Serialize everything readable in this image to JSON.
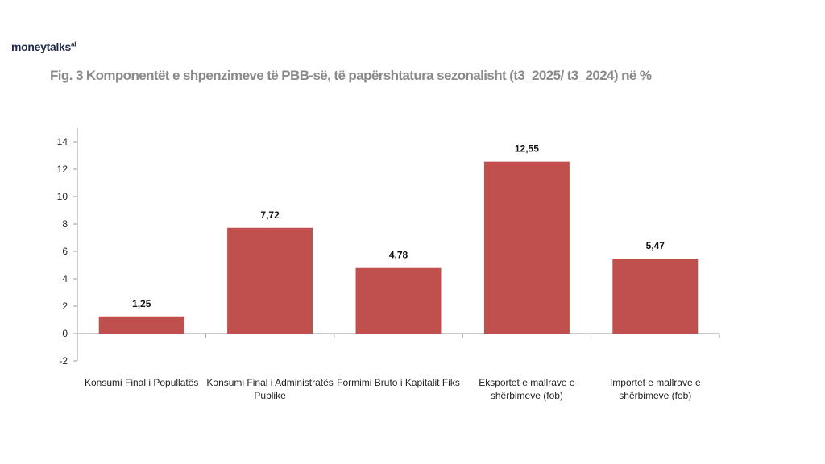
{
  "brand": {
    "logo_text": "moneytalks",
    "logo_sup": "al"
  },
  "chart_data": {
    "type": "bar",
    "title": "Fig. 3 Komponentët  e shpenzimeve të PBB-së, të papërshtatura sezonalisht (t3_2025/ t3_2024) në %",
    "categories": [
      [
        "Konsumi Final i Popullatës"
      ],
      [
        "Konsumi Final i Administratës",
        "Publike"
      ],
      [
        "Formimi Bruto i Kapitalit Fiks"
      ],
      [
        "Eksportet e mallrave e",
        "shërbimeve (fob)"
      ],
      [
        "Importet e mallrave e",
        "shërbimeve (fob)"
      ]
    ],
    "values": [
      1.25,
      7.72,
      4.78,
      12.55,
      5.47
    ],
    "data_labels": [
      "1,25",
      "7,72",
      "4,78",
      "12,55",
      "5,47"
    ],
    "ylim": [
      -2,
      14
    ],
    "yticks": [
      -2,
      0,
      2,
      4,
      6,
      8,
      10,
      12,
      14
    ],
    "bar_color": "#c0504d",
    "xlabel": "",
    "ylabel": "",
    "grid": false,
    "legend": "none"
  }
}
